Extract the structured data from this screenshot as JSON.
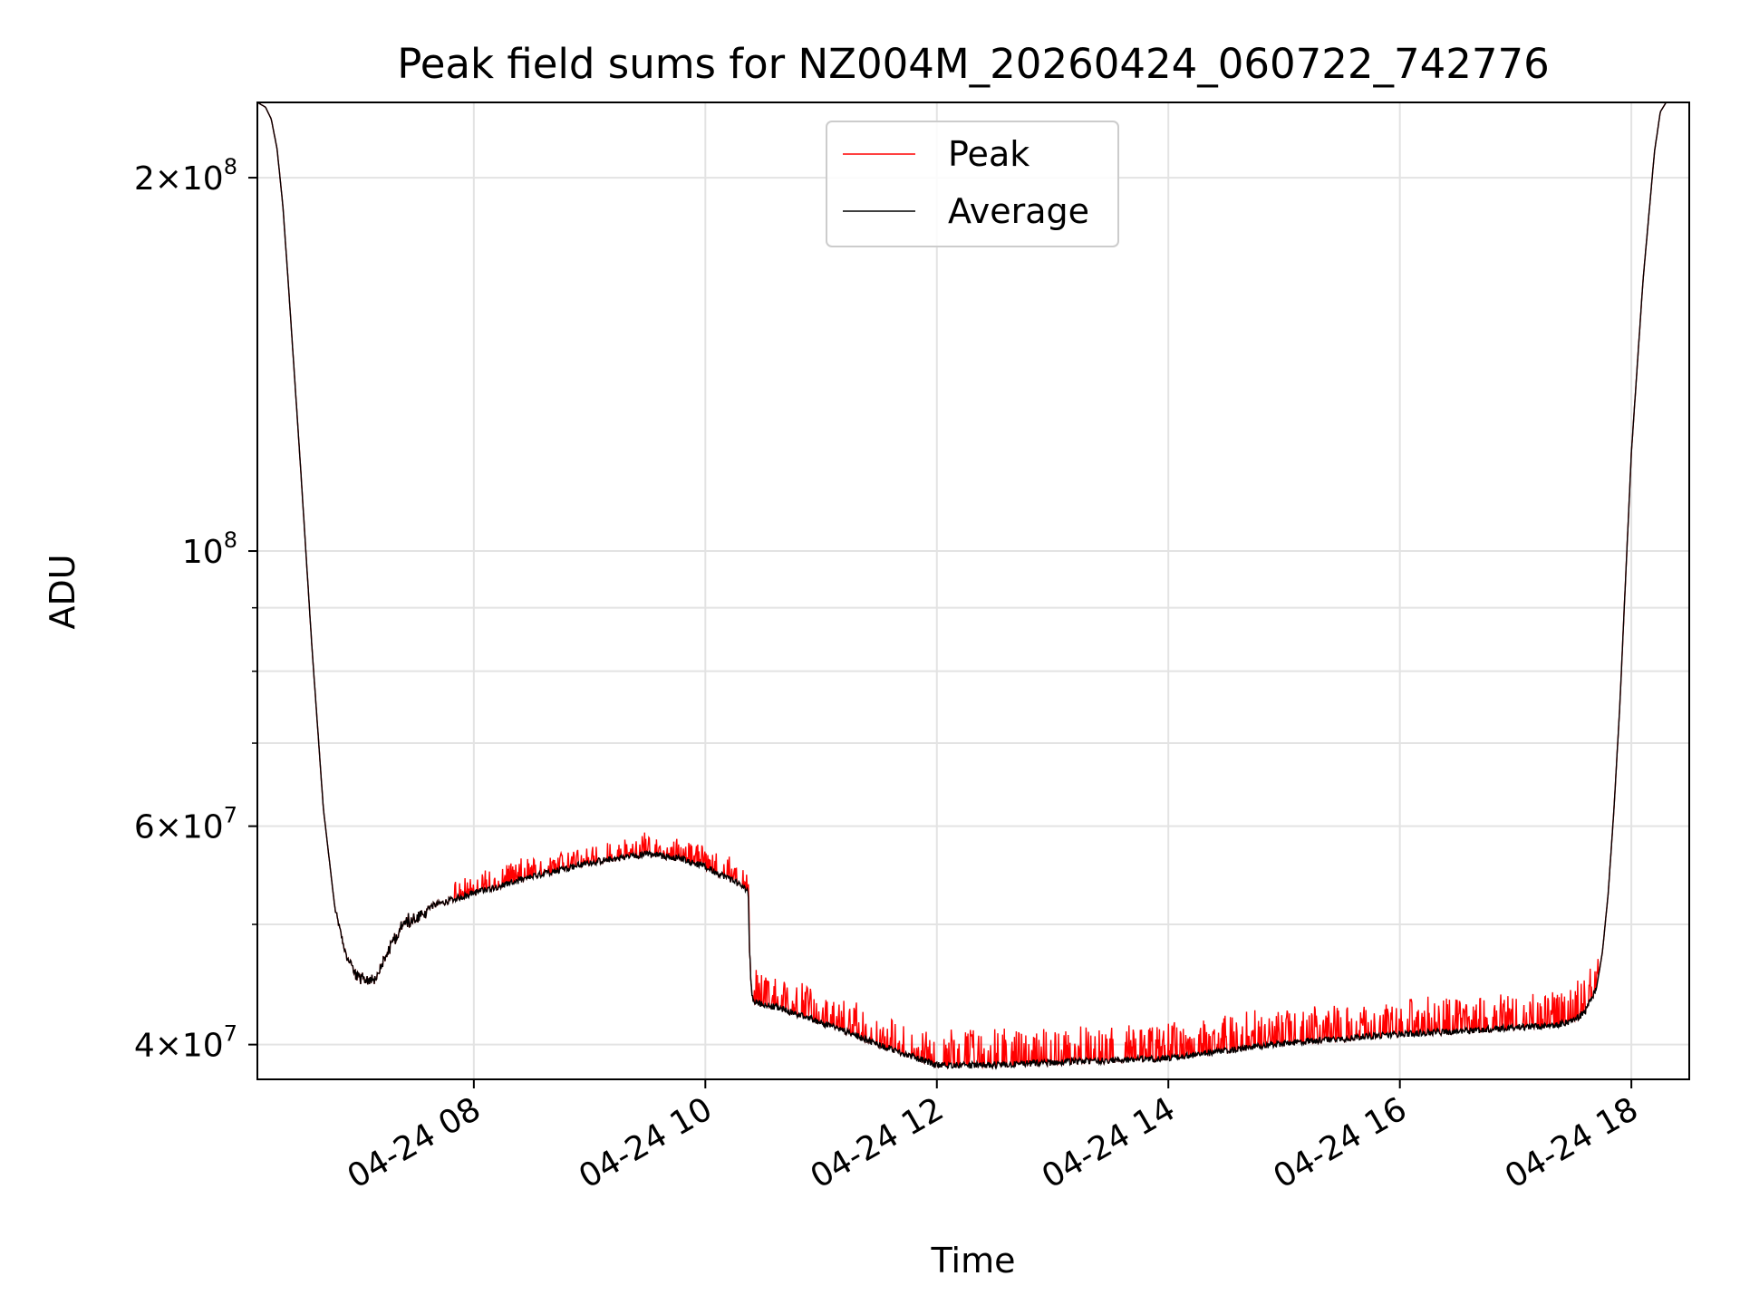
{
  "chart_data": {
    "type": "line",
    "title": "Peak field sums for NZ004M_20260424_060722_742776",
    "xlabel": "Time",
    "ylabel": "ADU",
    "yscale": "log",
    "grid": true,
    "legend_position": "top-center",
    "xlim_hours": [
      6.13,
      18.5
    ],
    "ylim": [
      37500000,
      230000000
    ],
    "x_ticks": [
      {
        "value": 8,
        "label": "04-24 08"
      },
      {
        "value": 10,
        "label": "04-24 10"
      },
      {
        "value": 12,
        "label": "04-24 12"
      },
      {
        "value": 14,
        "label": "04-24 14"
      },
      {
        "value": 16,
        "label": "04-24 16"
      },
      {
        "value": 18,
        "label": "04-24 18"
      }
    ],
    "y_ticks": [
      {
        "value": 40000000,
        "mantissa": "4",
        "exponent": "7"
      },
      {
        "value": 60000000,
        "mantissa": "6",
        "exponent": "7"
      },
      {
        "value": 100000000,
        "mantissa": "",
        "exponent": "8"
      },
      {
        "value": 200000000,
        "mantissa": "2",
        "exponent": "8"
      }
    ],
    "y_minor_ticks": [
      50000000,
      70000000,
      80000000,
      90000000
    ],
    "series": [
      {
        "name": "Peak",
        "color": "#ff0000",
        "spike_bands": [
          {
            "from": 7.8,
            "to": 10.38,
            "amplitude": 0.028
          },
          {
            "from": 10.42,
            "to": 12.0,
            "amplitude": 0.045
          },
          {
            "from": 12.05,
            "to": 17.72,
            "amplitude": 0.05
          }
        ]
      },
      {
        "name": "Average",
        "color": "#000000",
        "x": [
          6.13,
          6.2,
          6.25,
          6.3,
          6.35,
          6.4,
          6.5,
          6.6,
          6.7,
          6.8,
          6.9,
          7.0,
          7.05,
          7.1,
          7.15,
          7.2,
          7.3,
          7.4,
          7.5,
          7.6,
          7.8,
          8.0,
          8.5,
          9.0,
          9.5,
          9.8,
          10.0,
          10.2,
          10.37,
          10.38,
          10.4,
          10.42,
          10.6,
          11.0,
          11.5,
          12.0,
          12.5,
          13.0,
          14.0,
          15.0,
          16.0,
          16.5,
          17.0,
          17.3,
          17.5,
          17.6,
          17.7,
          17.75,
          17.8,
          17.85,
          17.9,
          17.95,
          18.0,
          18.1,
          18.2,
          18.25,
          18.3,
          18.35,
          18.4,
          18.5
        ],
        "y": [
          230000000,
          228000000,
          223000000,
          211000000,
          190000000,
          163000000,
          118000000,
          84000000,
          62000000,
          51500000,
          47000000,
          45700000,
          45600000,
          45600000,
          45900000,
          46700000,
          49000000,
          50600000,
          51200000,
          51600000,
          52300000,
          53000000,
          54600000,
          56100000,
          57000000,
          56500000,
          55600000,
          54500000,
          53300000,
          48000000,
          44000000,
          43300000,
          42900000,
          41700000,
          40000000,
          38500000,
          38500000,
          38700000,
          39000000,
          40100000,
          40800000,
          41000000,
          41300000,
          41400000,
          41800000,
          42500000,
          44500000,
          47500000,
          53000000,
          62000000,
          75000000,
          95000000,
          120000000,
          165000000,
          210000000,
          226000000,
          230000000,
          230000000,
          230000000,
          230000000
        ]
      }
    ]
  }
}
